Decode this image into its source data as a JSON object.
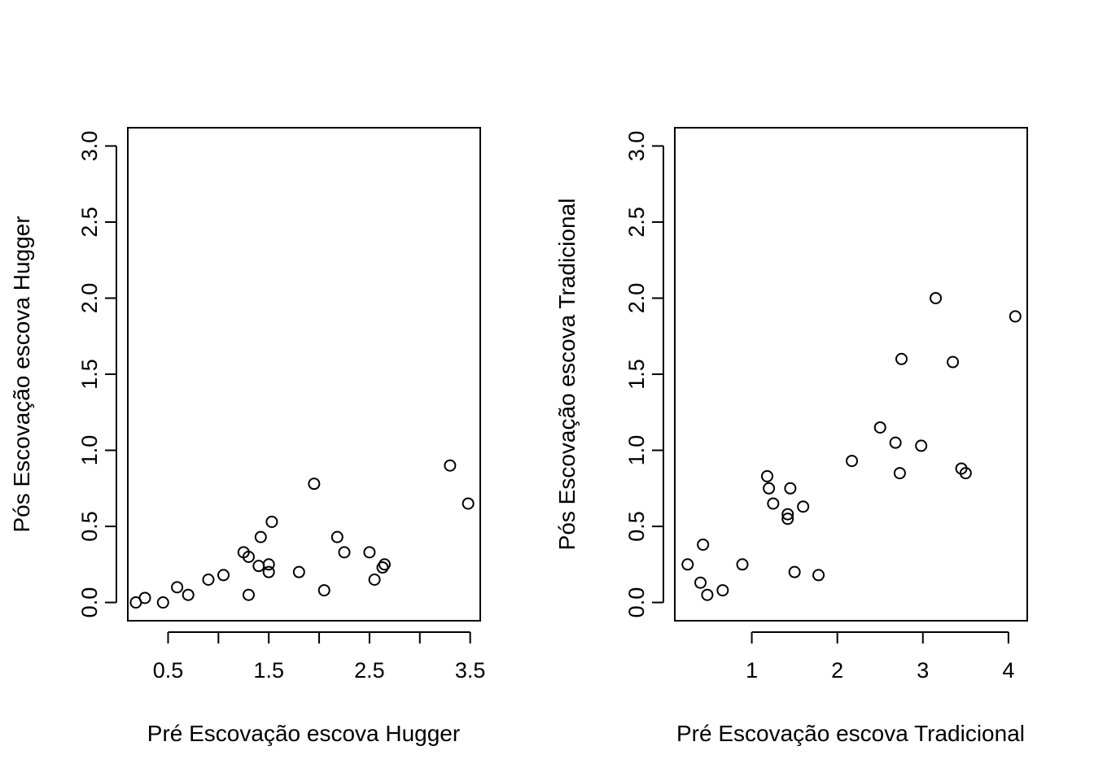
{
  "colors": {
    "ink": "#000000",
    "background": "#ffffff"
  },
  "chart_data": [
    {
      "type": "scatter",
      "xlabel": "Pré Escovação escova Hugger",
      "ylabel": "Pós Escovação escova Hugger",
      "xlim": [
        0.1,
        3.6
      ],
      "ylim": [
        -0.12,
        3.12
      ],
      "xticks_major": [
        0.5,
        1.5,
        2.5,
        3.5
      ],
      "xticks_minor": [
        1.0,
        2.0,
        3.0
      ],
      "xtick_labels": [
        "0.5",
        "1.5",
        "2.5",
        "3.5"
      ],
      "yticks": [
        0.0,
        0.5,
        1.0,
        1.5,
        2.0,
        2.5,
        3.0
      ],
      "ytick_labels": [
        "0.0",
        "0.5",
        "1.0",
        "1.5",
        "2.0",
        "2.5",
        "3.0"
      ],
      "marker": "open-circle",
      "points": [
        {
          "x": 0.18,
          "y": 0.0
        },
        {
          "x": 0.27,
          "y": 0.03
        },
        {
          "x": 0.45,
          "y": 0.0
        },
        {
          "x": 0.59,
          "y": 0.1
        },
        {
          "x": 0.7,
          "y": 0.05
        },
        {
          "x": 0.9,
          "y": 0.15
        },
        {
          "x": 1.05,
          "y": 0.18
        },
        {
          "x": 1.25,
          "y": 0.33
        },
        {
          "x": 1.3,
          "y": 0.3
        },
        {
          "x": 1.3,
          "y": 0.05
        },
        {
          "x": 1.4,
          "y": 0.24
        },
        {
          "x": 1.42,
          "y": 0.43
        },
        {
          "x": 1.5,
          "y": 0.25
        },
        {
          "x": 1.5,
          "y": 0.2
        },
        {
          "x": 1.53,
          "y": 0.53
        },
        {
          "x": 1.8,
          "y": 0.2
        },
        {
          "x": 1.95,
          "y": 0.78
        },
        {
          "x": 2.05,
          "y": 0.08
        },
        {
          "x": 2.18,
          "y": 0.43
        },
        {
          "x": 2.25,
          "y": 0.33
        },
        {
          "x": 2.5,
          "y": 0.33
        },
        {
          "x": 2.55,
          "y": 0.15
        },
        {
          "x": 2.63,
          "y": 0.23
        },
        {
          "x": 2.65,
          "y": 0.25
        },
        {
          "x": 3.3,
          "y": 0.9
        },
        {
          "x": 3.48,
          "y": 0.65
        }
      ]
    },
    {
      "type": "scatter",
      "xlabel": "Pré Escovação escova Tradicional",
      "ylabel": "Pós Escovação escova Tradicional",
      "xlim": [
        0.1,
        4.22
      ],
      "ylim": [
        -0.12,
        3.12
      ],
      "xticks_major": [
        1,
        2,
        3,
        4
      ],
      "xticks_minor": [],
      "xtick_labels": [
        "1",
        "2",
        "3",
        "4"
      ],
      "yticks": [
        0.0,
        0.5,
        1.0,
        1.5,
        2.0,
        2.5,
        3.0
      ],
      "ytick_labels": [
        "0.0",
        "0.5",
        "1.0",
        "1.5",
        "2.0",
        "2.5",
        "3.0"
      ],
      "marker": "open-circle",
      "points": [
        {
          "x": 0.25,
          "y": 0.25
        },
        {
          "x": 0.4,
          "y": 0.13
        },
        {
          "x": 0.43,
          "y": 0.38
        },
        {
          "x": 0.48,
          "y": 0.05
        },
        {
          "x": 0.66,
          "y": 0.08
        },
        {
          "x": 0.89,
          "y": 0.25
        },
        {
          "x": 1.18,
          "y": 0.83
        },
        {
          "x": 1.2,
          "y": 0.75
        },
        {
          "x": 1.25,
          "y": 0.65
        },
        {
          "x": 1.42,
          "y": 0.58
        },
        {
          "x": 1.42,
          "y": 0.55
        },
        {
          "x": 1.45,
          "y": 0.75
        },
        {
          "x": 1.5,
          "y": 0.2
        },
        {
          "x": 1.6,
          "y": 0.63
        },
        {
          "x": 1.78,
          "y": 0.18
        },
        {
          "x": 2.17,
          "y": 0.93
        },
        {
          "x": 2.5,
          "y": 1.15
        },
        {
          "x": 2.68,
          "y": 1.05
        },
        {
          "x": 2.73,
          "y": 0.85
        },
        {
          "x": 2.75,
          "y": 1.6
        },
        {
          "x": 2.98,
          "y": 1.03
        },
        {
          "x": 3.15,
          "y": 2.0
        },
        {
          "x": 3.35,
          "y": 1.58
        },
        {
          "x": 3.45,
          "y": 0.88
        },
        {
          "x": 3.5,
          "y": 0.85
        },
        {
          "x": 4.08,
          "y": 1.88
        }
      ]
    }
  ]
}
